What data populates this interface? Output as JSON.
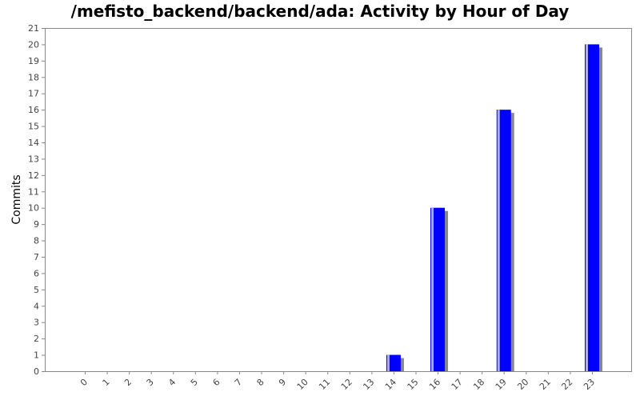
{
  "chart_data": {
    "type": "bar",
    "title": "/mefisto_backend/backend/ada: Activity by Hour of Day",
    "xlabel": "",
    "ylabel": "Commits",
    "categories": [
      "0",
      "1",
      "2",
      "3",
      "4",
      "5",
      "6",
      "7",
      "8",
      "9",
      "10",
      "11",
      "12",
      "13",
      "14",
      "15",
      "16",
      "17",
      "18",
      "19",
      "20",
      "21",
      "22",
      "23"
    ],
    "values": [
      0,
      0,
      0,
      0,
      0,
      0,
      0,
      0,
      0,
      0,
      0,
      0,
      0,
      0,
      1,
      0,
      10,
      0,
      0,
      16,
      0,
      0,
      0,
      20
    ],
    "ylim": [
      0,
      21
    ],
    "yticks": [
      0,
      1,
      2,
      3,
      4,
      5,
      6,
      7,
      8,
      9,
      10,
      11,
      12,
      13,
      14,
      15,
      16,
      17,
      18,
      19,
      20,
      21
    ],
    "grid": false,
    "legend": "none",
    "colors": {
      "bar": "#0000ff",
      "bar_highlight": "#aaaaff",
      "shadow": "#888888",
      "axis": "#888888"
    }
  }
}
